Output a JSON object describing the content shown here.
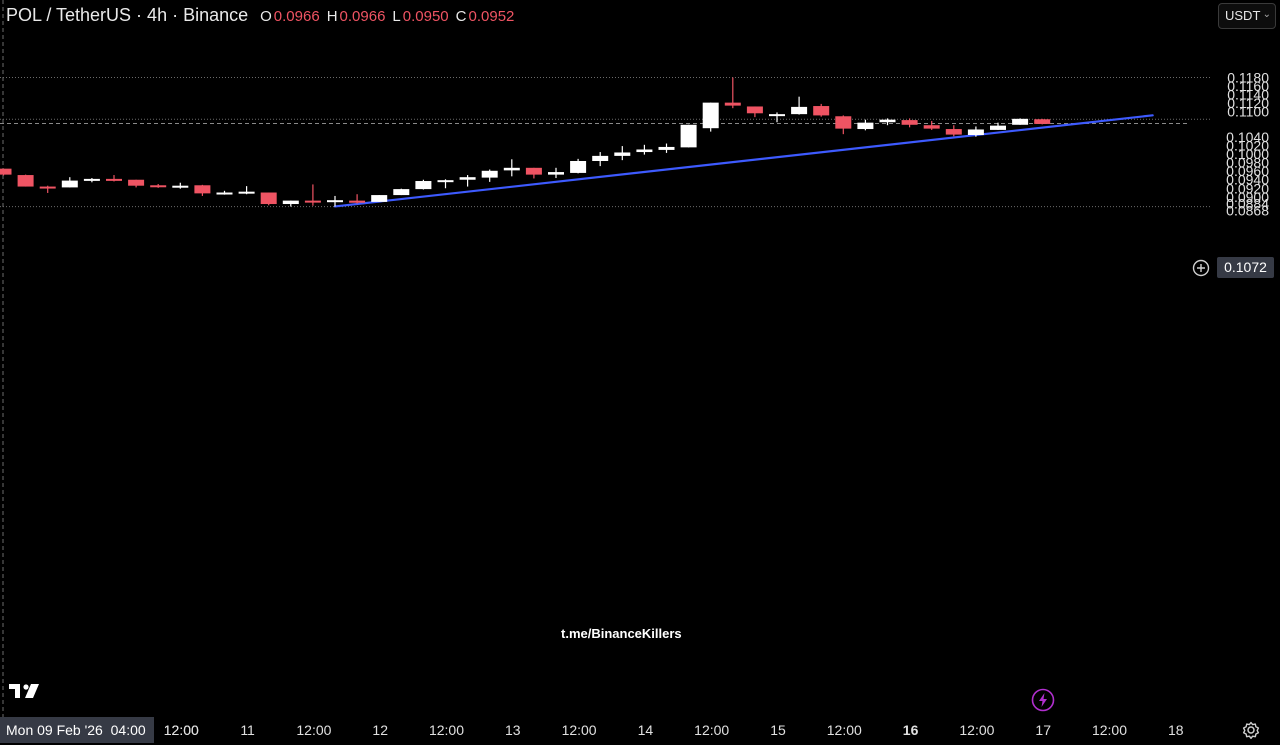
{
  "header": {
    "symbol": "POL / TetherUS · 4h · Binance",
    "open_label": "O",
    "open": "0.0966",
    "high_label": "H",
    "high": "0.0966",
    "low_label": "L",
    "low": "0.0950",
    "close_label": "C",
    "close": "0.0952"
  },
  "currency": {
    "label": "USDT"
  },
  "watermark": "t.me/BinanceKillers",
  "crosshair_date": "Mon 09 Feb '26",
  "crosshair_time": "04:00",
  "current_price": "0.1072",
  "colors": {
    "up": "#ffffff",
    "down": "#ef5463",
    "trendline": "#3d5afe",
    "background": "#000000"
  },
  "icons": {
    "logo": "tradingview-logo-icon",
    "add": "plus-circle-icon",
    "alert": "lightning-icon",
    "settings": "gear-icon"
  },
  "chart_data": {
    "type": "candlestick",
    "timeframe": "4h",
    "y_ticks": [
      0.118,
      0.116,
      0.114,
      0.112,
      0.11,
      0.108,
      0.106,
      0.104,
      0.102,
      0.1,
      0.098,
      0.096,
      0.094,
      0.092,
      0.09,
      0.0884,
      0.0868
    ],
    "y_tick_labels": [
      "0.1180",
      "0.1160",
      "0.1140",
      "0.1120",
      "0.1100",
      "0.1080",
      "0.1060",
      "0.1040",
      "0.1020",
      "0.1000",
      "0.0980",
      "0.0960",
      "0.0940",
      "0.0920",
      "0.0900",
      "0.0884",
      "0.0868"
    ],
    "x_ticks": [
      {
        "label": "12:00",
        "i": 8
      },
      {
        "label": "11",
        "i": 11
      },
      {
        "label": "12:00",
        "i": 14
      },
      {
        "label": "12",
        "i": 17
      },
      {
        "label": "12:00",
        "i": 20
      },
      {
        "label": "13",
        "i": 23
      },
      {
        "label": "12:00",
        "i": 26
      },
      {
        "label": "14",
        "i": 29
      },
      {
        "label": "12:00",
        "i": 32
      },
      {
        "label": "15",
        "i": 35
      },
      {
        "label": "12:00",
        "i": 38
      },
      {
        "label": "16",
        "i": 41,
        "bold": true
      },
      {
        "label": "12:00",
        "i": 44
      },
      {
        "label": "17",
        "i": 47
      },
      {
        "label": "12:00",
        "i": 50
      },
      {
        "label": "18",
        "i": 53
      }
    ],
    "candles": [
      {
        "o": 0.0966,
        "h": 0.0966,
        "l": 0.095,
        "c": 0.0952
      },
      {
        "o": 0.0951,
        "h": 0.0952,
        "l": 0.0924,
        "c": 0.0924
      },
      {
        "o": 0.0924,
        "h": 0.0926,
        "l": 0.0909,
        "c": 0.0922
      },
      {
        "o": 0.0922,
        "h": 0.0946,
        "l": 0.0922,
        "c": 0.0938
      },
      {
        "o": 0.094,
        "h": 0.0944,
        "l": 0.0934,
        "c": 0.0942
      },
      {
        "o": 0.0942,
        "h": 0.0951,
        "l": 0.0936,
        "c": 0.094
      },
      {
        "o": 0.094,
        "h": 0.094,
        "l": 0.0922,
        "c": 0.0926
      },
      {
        "o": 0.0927,
        "h": 0.093,
        "l": 0.0921,
        "c": 0.0924
      },
      {
        "o": 0.0925,
        "h": 0.0933,
        "l": 0.0919,
        "c": 0.0926
      },
      {
        "o": 0.0927,
        "h": 0.0928,
        "l": 0.0902,
        "c": 0.0908
      },
      {
        "o": 0.0908,
        "h": 0.0914,
        "l": 0.0905,
        "c": 0.091
      },
      {
        "o": 0.091,
        "h": 0.0925,
        "l": 0.0906,
        "c": 0.0912
      },
      {
        "o": 0.091,
        "h": 0.091,
        "l": 0.088,
        "c": 0.0883
      },
      {
        "o": 0.0883,
        "h": 0.0891,
        "l": 0.0877,
        "c": 0.0891
      },
      {
        "o": 0.0891,
        "h": 0.0929,
        "l": 0.0879,
        "c": 0.0888
      },
      {
        "o": 0.0888,
        "h": 0.0902,
        "l": 0.0877,
        "c": 0.0892
      },
      {
        "o": 0.0891,
        "h": 0.0906,
        "l": 0.0884,
        "c": 0.0886
      },
      {
        "o": 0.0888,
        "h": 0.0904,
        "l": 0.0888,
        "c": 0.0904
      },
      {
        "o": 0.0904,
        "h": 0.0919,
        "l": 0.0904,
        "c": 0.0918
      },
      {
        "o": 0.0918,
        "h": 0.094,
        "l": 0.0917,
        "c": 0.0937
      },
      {
        "o": 0.0935,
        "h": 0.0941,
        "l": 0.092,
        "c": 0.0939
      },
      {
        "o": 0.094,
        "h": 0.0951,
        "l": 0.0924,
        "c": 0.0946
      },
      {
        "o": 0.0945,
        "h": 0.0964,
        "l": 0.0935,
        "c": 0.0961
      },
      {
        "o": 0.0962,
        "h": 0.0988,
        "l": 0.0948,
        "c": 0.0968
      },
      {
        "o": 0.0968,
        "h": 0.0968,
        "l": 0.0943,
        "c": 0.0952
      },
      {
        "o": 0.0952,
        "h": 0.0968,
        "l": 0.0944,
        "c": 0.0958
      },
      {
        "o": 0.0956,
        "h": 0.0989,
        "l": 0.0955,
        "c": 0.0984
      },
      {
        "o": 0.0984,
        "h": 0.1005,
        "l": 0.0972,
        "c": 0.0996
      },
      {
        "o": 0.0996,
        "h": 0.1019,
        "l": 0.0986,
        "c": 0.1004
      },
      {
        "o": 0.1005,
        "h": 0.1022,
        "l": 0.0999,
        "c": 0.1011
      },
      {
        "o": 0.101,
        "h": 0.1025,
        "l": 0.1003,
        "c": 0.1017
      },
      {
        "o": 0.1016,
        "h": 0.1069,
        "l": 0.1016,
        "c": 0.1069
      },
      {
        "o": 0.1061,
        "h": 0.1121,
        "l": 0.1053,
        "c": 0.1121
      },
      {
        "o": 0.1121,
        "h": 0.118,
        "l": 0.1108,
        "c": 0.1114
      },
      {
        "o": 0.1112,
        "h": 0.1112,
        "l": 0.1087,
        "c": 0.1096
      },
      {
        "o": 0.1094,
        "h": 0.1098,
        "l": 0.1075,
        "c": 0.1094
      },
      {
        "o": 0.1094,
        "h": 0.1135,
        "l": 0.1093,
        "c": 0.1111
      },
      {
        "o": 0.1113,
        "h": 0.1118,
        "l": 0.1088,
        "c": 0.1091
      },
      {
        "o": 0.1089,
        "h": 0.1091,
        "l": 0.1047,
        "c": 0.106
      },
      {
        "o": 0.1059,
        "h": 0.1081,
        "l": 0.1056,
        "c": 0.1074
      },
      {
        "o": 0.1075,
        "h": 0.1084,
        "l": 0.1068,
        "c": 0.1081
      },
      {
        "o": 0.108,
        "h": 0.1084,
        "l": 0.1063,
        "c": 0.1069
      },
      {
        "o": 0.1068,
        "h": 0.1078,
        "l": 0.1057,
        "c": 0.106
      },
      {
        "o": 0.1059,
        "h": 0.1068,
        "l": 0.1042,
        "c": 0.1046
      },
      {
        "o": 0.1045,
        "h": 0.1065,
        "l": 0.1041,
        "c": 0.1058
      },
      {
        "o": 0.1057,
        "h": 0.1074,
        "l": 0.1057,
        "c": 0.1067
      },
      {
        "o": 0.1069,
        "h": 0.1084,
        "l": 0.1069,
        "c": 0.1083
      },
      {
        "o": 0.1082,
        "h": 0.1083,
        "l": 0.107,
        "c": 0.1071
      }
    ],
    "trendline": {
      "i1": 15,
      "p1": 0.08773,
      "i2": 52,
      "p2": 0.10912
    },
    "horizontal_lines": [
      0.118,
      0.1082,
      0.0877
    ],
    "current_price_line": 0.1072,
    "grid": false
  }
}
